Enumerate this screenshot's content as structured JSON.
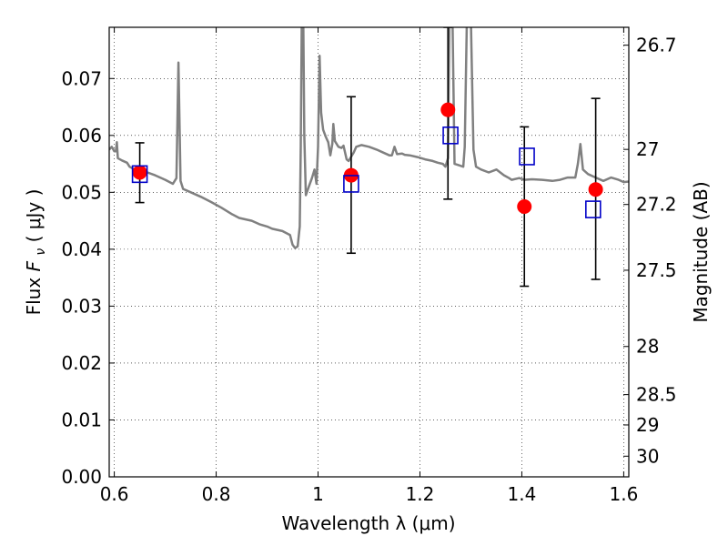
{
  "chart_data": {
    "type": "scatter",
    "xlabel": "Wavelength  λ (μm)",
    "ylabel_left": {
      "prefix": "Flux ",
      "var": "F",
      "sub": "ν",
      "unit": " ( μJy )"
    },
    "ylabel_right": "Magnitude (AB)",
    "xlim": [
      0.59,
      1.61
    ],
    "ylim": [
      0.0,
      0.079
    ],
    "grid": true,
    "x_ticks": [
      {
        "value": 0.6,
        "label": "0.6"
      },
      {
        "value": 0.8,
        "label": "0.8"
      },
      {
        "value": 1.0,
        "label": "1"
      },
      {
        "value": 1.2,
        "label": "1.2"
      },
      {
        "value": 1.4,
        "label": "1.4"
      },
      {
        "value": 1.6,
        "label": "1.6"
      }
    ],
    "y_ticks": [
      {
        "value": 0.0,
        "label": "0.00"
      },
      {
        "value": 0.01,
        "label": "0.01"
      },
      {
        "value": 0.02,
        "label": "0.02"
      },
      {
        "value": 0.03,
        "label": "0.03"
      },
      {
        "value": 0.04,
        "label": "0.04"
      },
      {
        "value": 0.05,
        "label": "0.05"
      },
      {
        "value": 0.06,
        "label": "0.06"
      },
      {
        "value": 0.07,
        "label": "0.07"
      }
    ],
    "right_ticks": [
      {
        "mag": 26.7,
        "label": "26.7"
      },
      {
        "mag": 27.0,
        "label": "27"
      },
      {
        "mag": 27.2,
        "label": "27.2"
      },
      {
        "mag": 27.5,
        "label": "27.5"
      },
      {
        "mag": 28.0,
        "label": "28"
      },
      {
        "mag": 28.5,
        "label": "28.5"
      },
      {
        "mag": 29.0,
        "label": "29"
      },
      {
        "mag": 30.0,
        "label": "30"
      }
    ],
    "series": [
      {
        "kind": "line",
        "color": "#808080",
        "points": [
          [
            0.59,
            0.0575
          ],
          [
            0.595,
            0.058
          ],
          [
            0.6,
            0.0572
          ],
          [
            0.603,
            0.0572
          ],
          [
            0.605,
            0.0588
          ],
          [
            0.607,
            0.056
          ],
          [
            0.615,
            0.0556
          ],
          [
            0.625,
            0.0552
          ],
          [
            0.63,
            0.0545
          ],
          [
            0.64,
            0.054
          ],
          [
            0.65,
            0.0537
          ],
          [
            0.665,
            0.0535
          ],
          [
            0.68,
            0.053
          ],
          [
            0.7,
            0.0522
          ],
          [
            0.715,
            0.0515
          ],
          [
            0.722,
            0.0525
          ],
          [
            0.726,
            0.0728
          ],
          [
            0.73,
            0.052
          ],
          [
            0.735,
            0.0506
          ],
          [
            0.75,
            0.05
          ],
          [
            0.77,
            0.0492
          ],
          [
            0.79,
            0.0483
          ],
          [
            0.81,
            0.0473
          ],
          [
            0.83,
            0.0462
          ],
          [
            0.845,
            0.0455
          ],
          [
            0.86,
            0.0452
          ],
          [
            0.87,
            0.045
          ],
          [
            0.885,
            0.0444
          ],
          [
            0.9,
            0.044
          ],
          [
            0.91,
            0.0436
          ],
          [
            0.93,
            0.0432
          ],
          [
            0.945,
            0.0425
          ],
          [
            0.95,
            0.0408
          ],
          [
            0.955,
            0.0402
          ],
          [
            0.96,
            0.0405
          ],
          [
            0.964,
            0.044
          ],
          [
            0.966,
            0.058
          ],
          [
            0.968,
            0.08
          ],
          [
            0.971,
            0.08
          ],
          [
            0.973,
            0.06
          ],
          [
            0.976,
            0.0495
          ],
          [
            0.982,
            0.051
          ],
          [
            0.988,
            0.0525
          ],
          [
            0.993,
            0.054
          ],
          [
            0.997,
            0.0515
          ],
          [
            1.0,
            0.058
          ],
          [
            1.003,
            0.074
          ],
          [
            1.006,
            0.064
          ],
          [
            1.01,
            0.061
          ],
          [
            1.015,
            0.0598
          ],
          [
            1.02,
            0.0588
          ],
          [
            1.024,
            0.0565
          ],
          [
            1.028,
            0.0585
          ],
          [
            1.03,
            0.062
          ],
          [
            1.033,
            0.059
          ],
          [
            1.04,
            0.058
          ],
          [
            1.046,
            0.0578
          ],
          [
            1.05,
            0.0582
          ],
          [
            1.056,
            0.0558
          ],
          [
            1.06,
            0.0555
          ],
          [
            1.07,
            0.057
          ],
          [
            1.075,
            0.058
          ],
          [
            1.085,
            0.0583
          ],
          [
            1.1,
            0.058
          ],
          [
            1.115,
            0.0575
          ],
          [
            1.13,
            0.0569
          ],
          [
            1.14,
            0.0565
          ],
          [
            1.145,
            0.0565
          ],
          [
            1.15,
            0.058
          ],
          [
            1.155,
            0.0567
          ],
          [
            1.165,
            0.0568
          ],
          [
            1.17,
            0.0566
          ],
          [
            1.18,
            0.0565
          ],
          [
            1.195,
            0.0562
          ],
          [
            1.21,
            0.0558
          ],
          [
            1.225,
            0.0555
          ],
          [
            1.235,
            0.0552
          ],
          [
            1.245,
            0.055
          ],
          [
            1.25,
            0.0545
          ],
          [
            1.255,
            0.056
          ],
          [
            1.258,
            0.08
          ],
          [
            1.264,
            0.08
          ],
          [
            1.268,
            0.055
          ],
          [
            1.275,
            0.0548
          ],
          [
            1.285,
            0.0545
          ],
          [
            1.288,
            0.058
          ],
          [
            1.292,
            0.08
          ],
          [
            1.3,
            0.08
          ],
          [
            1.305,
            0.0575
          ],
          [
            1.31,
            0.0545
          ],
          [
            1.32,
            0.054
          ],
          [
            1.335,
            0.0535
          ],
          [
            1.35,
            0.054
          ],
          [
            1.365,
            0.053
          ],
          [
            1.375,
            0.0525
          ],
          [
            1.38,
            0.0522
          ],
          [
            1.395,
            0.0525
          ],
          [
            1.405,
            0.0522
          ],
          [
            1.42,
            0.0523
          ],
          [
            1.44,
            0.0522
          ],
          [
            1.46,
            0.052
          ],
          [
            1.475,
            0.0522
          ],
          [
            1.49,
            0.0526
          ],
          [
            1.505,
            0.0526
          ],
          [
            1.51,
            0.055
          ],
          [
            1.515,
            0.0585
          ],
          [
            1.52,
            0.054
          ],
          [
            1.53,
            0.0532
          ],
          [
            1.545,
            0.0526
          ],
          [
            1.56,
            0.052
          ],
          [
            1.575,
            0.0526
          ],
          [
            1.59,
            0.0522
          ],
          [
            1.6,
            0.0518
          ],
          [
            1.61,
            0.0519
          ]
        ]
      },
      {
        "kind": "errorbar",
        "color": "#000000",
        "points": [
          {
            "x": 0.65,
            "y": 0.0535,
            "lo": 0.0482,
            "hi": 0.0587
          },
          {
            "x": 1.065,
            "y": 0.053,
            "lo": 0.0393,
            "hi": 0.0668
          },
          {
            "x": 1.255,
            "y": 0.0645,
            "lo": 0.0488,
            "hi": 0.079
          },
          {
            "x": 1.405,
            "y": 0.0475,
            "lo": 0.0335,
            "hi": 0.0615
          },
          {
            "x": 1.545,
            "y": 0.0505,
            "lo": 0.0347,
            "hi": 0.0665
          }
        ]
      },
      {
        "kind": "marker-circle",
        "color": "#ff0000",
        "points": [
          [
            0.65,
            0.0535
          ],
          [
            1.065,
            0.053
          ],
          [
            1.255,
            0.0645
          ],
          [
            1.405,
            0.0475
          ],
          [
            1.545,
            0.0505
          ]
        ]
      },
      {
        "kind": "marker-square",
        "color": "#0000c8",
        "points": [
          [
            0.65,
            0.0532
          ],
          [
            1.065,
            0.0515
          ],
          [
            1.26,
            0.06
          ],
          [
            1.41,
            0.0563
          ],
          [
            1.54,
            0.047
          ]
        ]
      }
    ]
  }
}
